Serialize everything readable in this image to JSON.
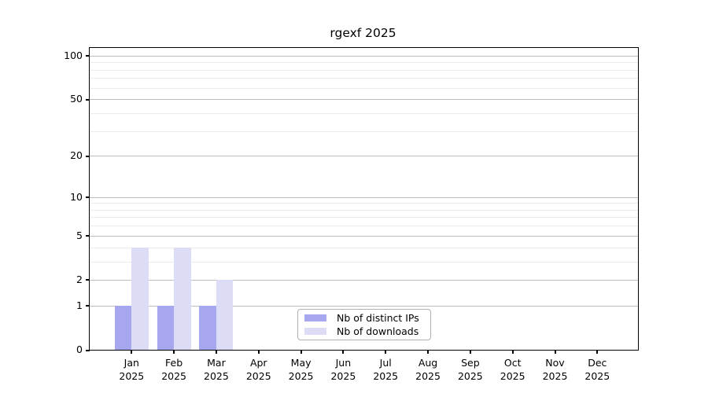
{
  "chart_data": {
    "type": "bar",
    "title": "rgexf 2025",
    "categories": [
      "Jan",
      "Feb",
      "Mar",
      "Apr",
      "May",
      "Jun",
      "Jul",
      "Aug",
      "Sep",
      "Oct",
      "Nov",
      "Dec"
    ],
    "category_year": "2025",
    "series": [
      {
        "key": "distinct-ips",
        "name": "Nb of distinct IPs",
        "color": "#a7a7f0",
        "values": [
          1,
          1,
          1,
          0,
          0,
          0,
          0,
          0,
          0,
          0,
          0,
          0
        ]
      },
      {
        "key": "downloads",
        "name": "Nb of downloads",
        "color": "#dcdcf6",
        "values": [
          4,
          4,
          2,
          0,
          0,
          0,
          0,
          0,
          0,
          0,
          0,
          0
        ]
      }
    ],
    "y_ticks": [
      0,
      1,
      2,
      5,
      10,
      20,
      50,
      100
    ],
    "y_minor_gridlines": [
      3,
      4,
      6,
      7,
      8,
      9,
      30,
      40,
      60,
      70,
      80,
      90
    ],
    "y_scale": "log1p",
    "ylim": [
      0,
      113
    ],
    "xlabel": "",
    "ylabel": "",
    "grid": true,
    "legend_position": "lower center"
  }
}
